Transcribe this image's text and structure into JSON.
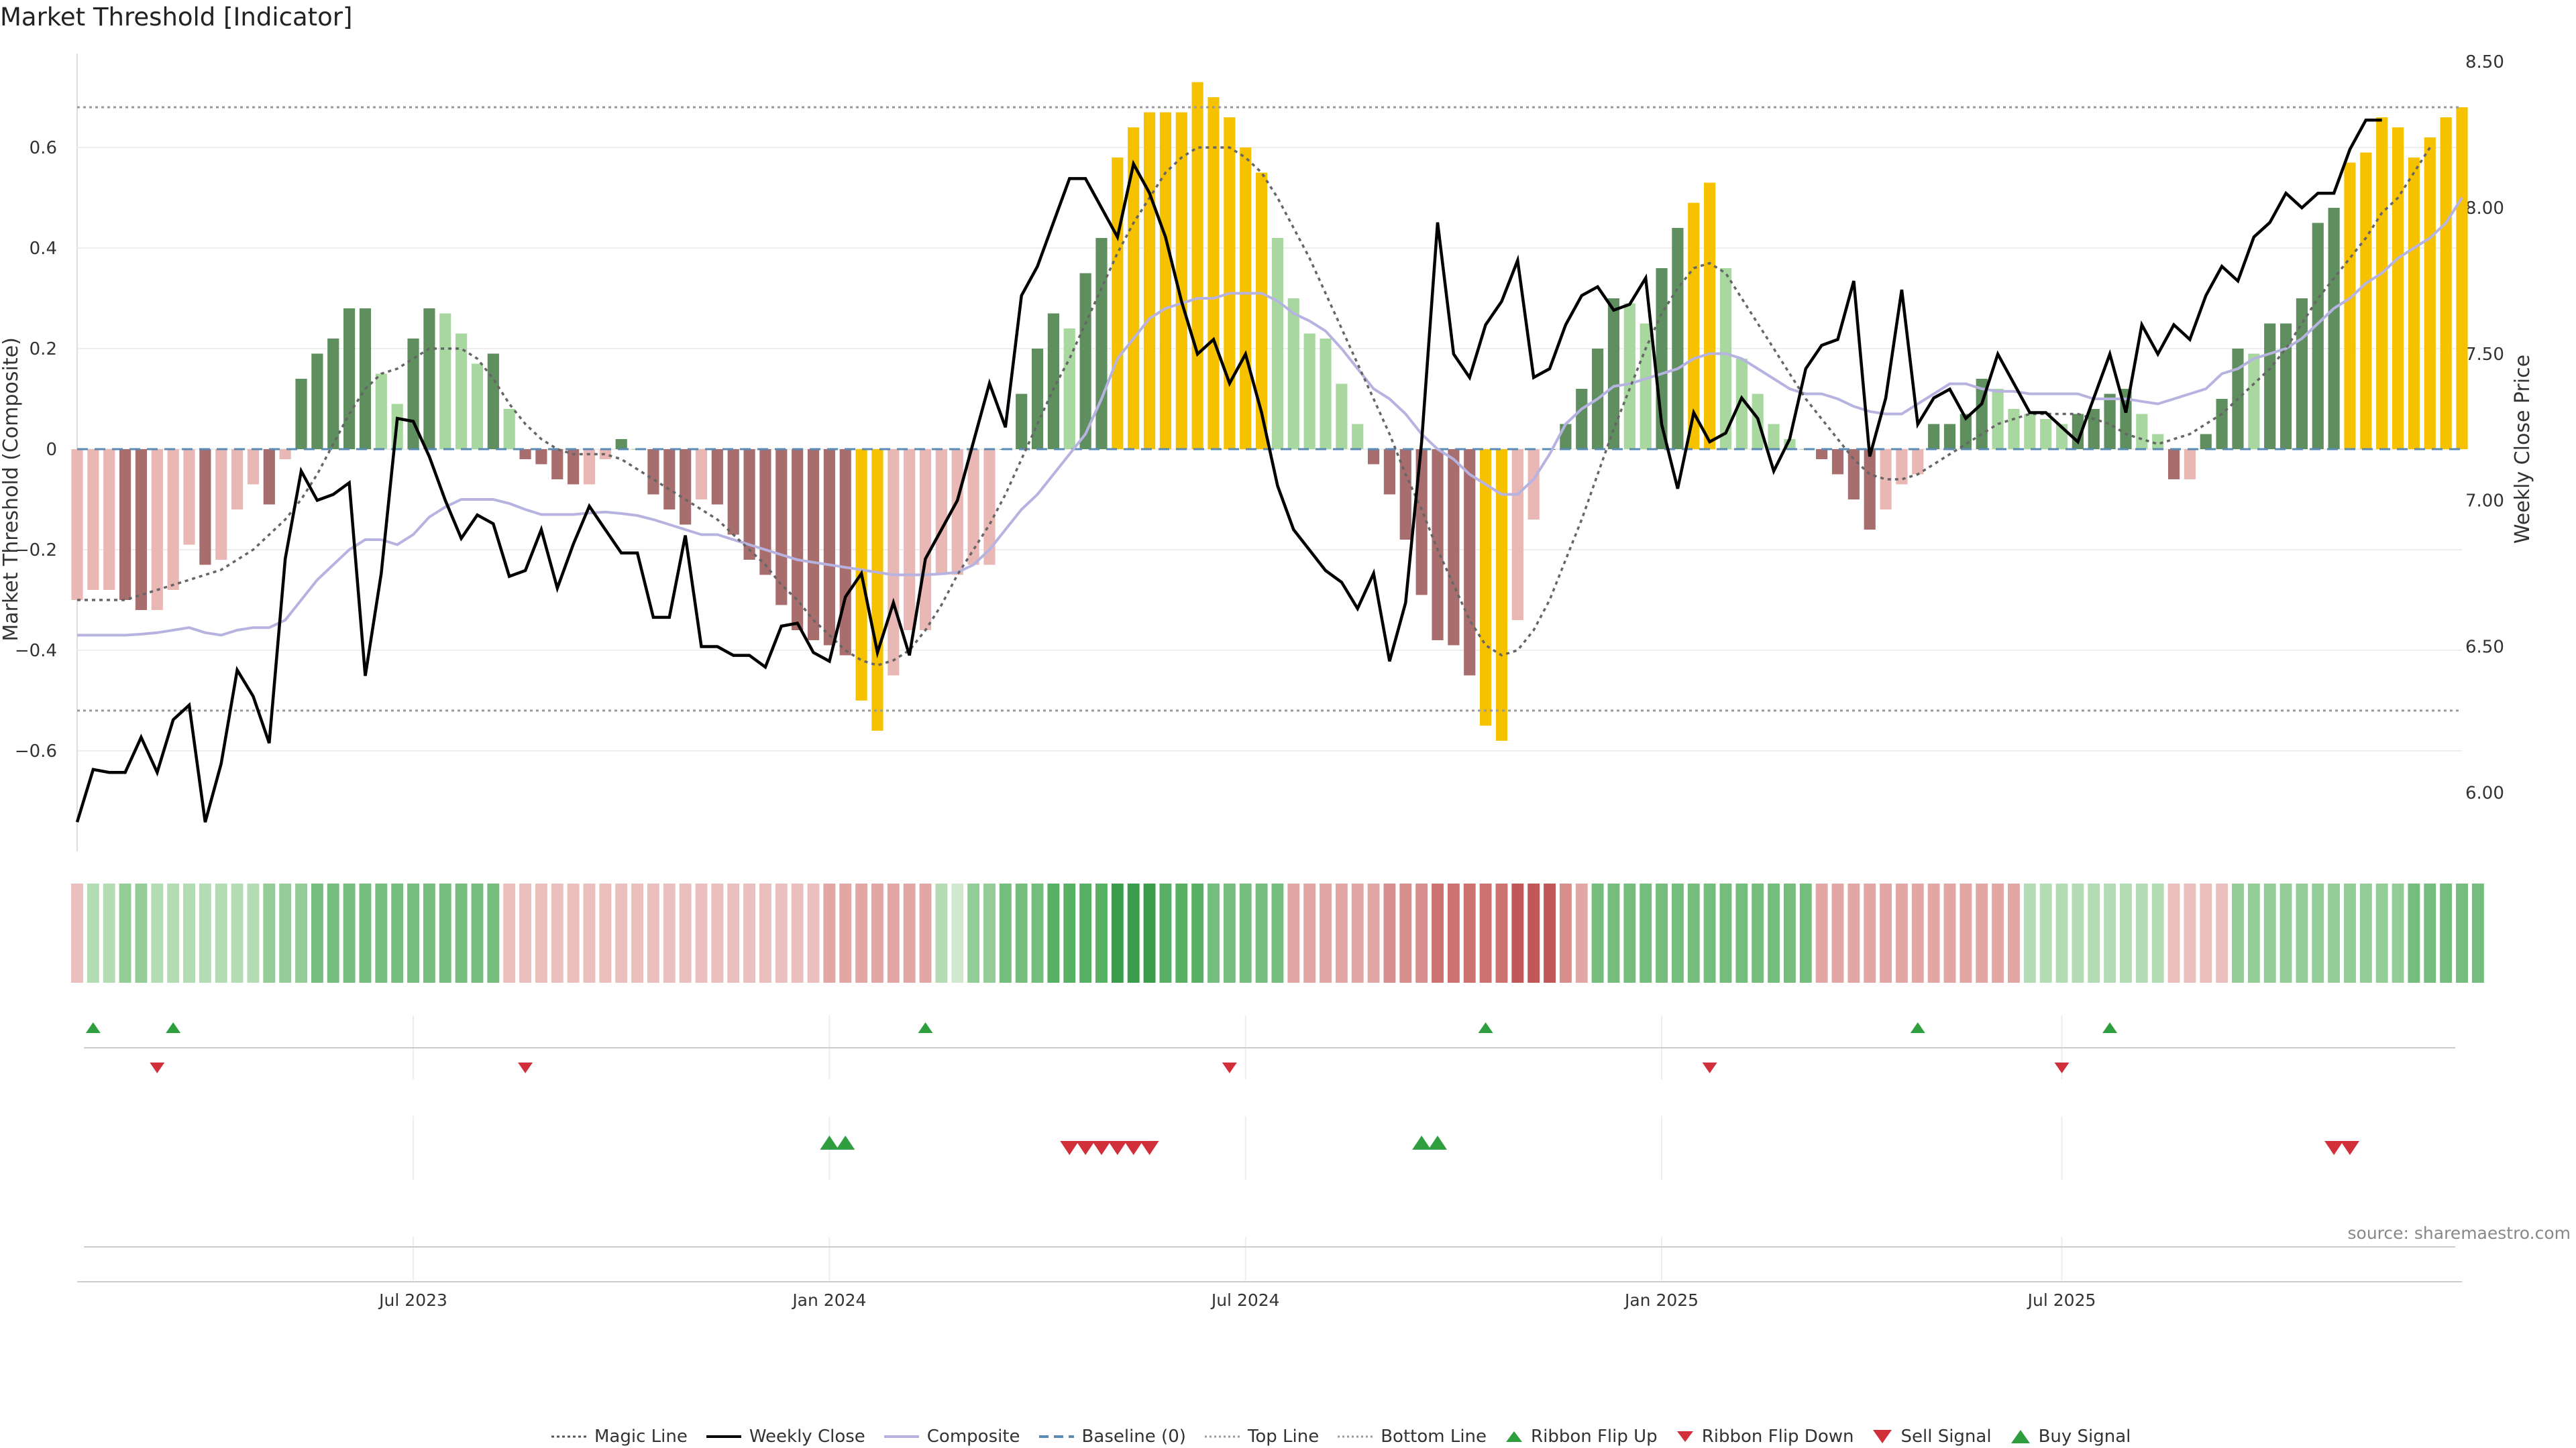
{
  "title": "Market Threshold [Indicator]",
  "source": "source: sharemaestro.com",
  "colors": {
    "weekly_close": "#000000",
    "composite": "#b7b3e0",
    "magic_line": "#666666",
    "baseline": "#5b8bb5",
    "threshold_lines": "#999999",
    "bar_dark_green": "#5f8f5f",
    "bar_light_green": "#a8d8a0",
    "bar_dark_red": "#a86e6e",
    "bar_light_red": "#eab8b4",
    "bar_extreme": "#f6c200",
    "signal_up": "#2e9e3e",
    "signal_down": "#d12f3a"
  },
  "legend": {
    "magic_line": "Magic Line",
    "weekly_close": "Weekly Close",
    "composite": "Composite",
    "baseline": "Baseline (0)",
    "top_line": "Top Line",
    "bottom_line": "Bottom Line",
    "ribbon_flip_up": "Ribbon Flip Up",
    "ribbon_flip_down": "Ribbon Flip Down",
    "sell_signal": "Sell Signal",
    "buy_signal": "Buy Signal"
  },
  "chart_data": {
    "type": "bar",
    "title": "Market Threshold [Indicator]",
    "ylabel": "Market Threshold (Composite)",
    "y2label": "Weekly Close Price",
    "ylim": [
      -0.8,
      0.8
    ],
    "y2lim": [
      5.8,
      8.55
    ],
    "yticks": [
      "0.6",
      "0.4",
      "0.2",
      "0",
      "−0.2",
      "−0.4",
      "−0.6"
    ],
    "y2ticks": [
      "8.50",
      "8.00",
      "7.50",
      "7.00",
      "6.50",
      "6.00"
    ],
    "xticks": [
      "Jul 2023",
      "Jan 2024",
      "Jul 2024",
      "Jan 2025",
      "Jul 2025"
    ],
    "xtick_positions": [
      21,
      47,
      73,
      99,
      124
    ],
    "top_line": 0.68,
    "bottom_line": -0.52,
    "grid": true,
    "legend_position": "bottom",
    "composite_bars": [
      -0.3,
      -0.28,
      -0.28,
      -0.3,
      -0.32,
      -0.32,
      -0.28,
      -0.19,
      -0.23,
      -0.22,
      -0.12,
      -0.07,
      -0.11,
      -0.02,
      0.14,
      0.19,
      0.22,
      0.28,
      0.28,
      0.15,
      0.09,
      0.22,
      0.28,
      0.27,
      0.23,
      0.17,
      0.19,
      0.08,
      -0.02,
      -0.03,
      -0.06,
      -0.07,
      -0.07,
      -0.02,
      0.02,
      0,
      -0.09,
      -0.12,
      -0.15,
      -0.1,
      -0.11,
      -0.17,
      -0.22,
      -0.25,
      -0.31,
      -0.36,
      -0.38,
      -0.39,
      -0.41,
      -0.5,
      -0.56,
      -0.45,
      -0.36,
      -0.36,
      -0.25,
      -0.25,
      -0.23,
      -0.23,
      0,
      0.11,
      0.2,
      0.27,
      0.24,
      0.35,
      0.42,
      0.58,
      0.64,
      0.67,
      0.67,
      0.67,
      0.73,
      0.7,
      0.66,
      0.6,
      0.55,
      0.42,
      0.3,
      0.23,
      0.22,
      0.13,
      0.05,
      -0.03,
      -0.09,
      -0.18,
      -0.29,
      -0.38,
      -0.39,
      -0.45,
      -0.55,
      -0.58,
      -0.34,
      -0.14,
      0,
      0.05,
      0.12,
      0.2,
      0.3,
      0.29,
      0.25,
      0.36,
      0.44,
      0.49,
      0.53,
      0.36,
      0.18,
      0.11,
      0.05,
      0.02,
      0,
      -0.02,
      -0.05,
      -0.1,
      -0.16,
      -0.12,
      -0.07,
      -0.05,
      0.05,
      0.05,
      0.07,
      0.14,
      0.12,
      0.08,
      0.07,
      0.06,
      0.05,
      0.07,
      0.08,
      0.11,
      0.12,
      0.07,
      0.03,
      -0.06,
      -0.06,
      0.03,
      0.1,
      0.2,
      0.19,
      0.25,
      0.25,
      0.3,
      0.45,
      0.48,
      0.57,
      0.59,
      0.66,
      0.64,
      0.58,
      0.62,
      0.66,
      0.68
    ],
    "weekly_close": [
      5.9,
      6.08,
      6.07,
      6.07,
      6.19,
      6.07,
      6.25,
      6.3,
      5.9,
      6.1,
      6.42,
      6.33,
      6.17,
      6.8,
      7.1,
      7.0,
      7.02,
      7.06,
      6.4,
      6.75,
      7.28,
      7.27,
      7.15,
      7.0,
      6.87,
      6.95,
      6.92,
      6.74,
      6.76,
      6.9,
      6.7,
      6.85,
      6.98,
      6.9,
      6.82,
      6.82,
      6.6,
      6.6,
      6.88,
      6.5,
      6.5,
      6.47,
      6.47,
      6.43,
      6.57,
      6.58,
      6.48,
      6.45,
      6.67,
      6.75,
      6.48,
      6.65,
      6.47,
      6.8,
      6.9,
      7.0,
      7.2,
      7.4,
      7.25,
      7.7,
      7.8,
      7.95,
      8.1,
      8.1,
      8.0,
      7.9,
      8.15,
      8.05,
      7.9,
      7.68,
      7.5,
      7.55,
      7.4,
      7.5,
      7.3,
      7.05,
      6.9,
      6.83,
      6.76,
      6.72,
      6.63,
      6.75,
      6.45,
      6.65,
      7.2,
      7.95,
      7.5,
      7.42,
      7.6,
      7.68,
      7.82,
      7.42,
      7.45,
      7.6,
      7.7,
      7.73,
      7.65,
      7.67,
      7.76,
      7.26,
      7.04,
      7.3,
      7.2,
      7.23,
      7.35,
      7.28,
      7.1,
      7.21,
      7.45,
      7.53,
      7.55,
      7.75,
      7.15,
      7.35,
      7.72,
      7.26,
      7.35,
      7.38,
      7.28,
      7.33,
      7.5,
      7.4,
      7.3,
      7.3,
      7.25,
      7.2,
      7.35,
      7.5,
      7.3,
      7.6,
      7.5,
      7.6,
      7.55,
      7.7,
      7.8,
      7.75,
      7.9,
      7.95,
      8.05,
      8.0,
      8.05,
      8.05,
      8.2,
      8.3,
      8.3
    ],
    "composite_line": [
      -0.37,
      -0.37,
      -0.37,
      -0.37,
      -0.368,
      -0.365,
      -0.36,
      -0.355,
      -0.365,
      -0.37,
      -0.36,
      -0.355,
      -0.355,
      -0.34,
      -0.3,
      -0.26,
      -0.23,
      -0.2,
      -0.18,
      -0.18,
      -0.19,
      -0.17,
      -0.135,
      -0.115,
      -0.1,
      -0.1,
      -0.1,
      -0.108,
      -0.12,
      -0.13,
      -0.13,
      -0.13,
      -0.127,
      -0.125,
      -0.128,
      -0.132,
      -0.14,
      -0.15,
      -0.16,
      -0.17,
      -0.17,
      -0.18,
      -0.19,
      -0.2,
      -0.21,
      -0.22,
      -0.225,
      -0.23,
      -0.235,
      -0.24,
      -0.245,
      -0.25,
      -0.25,
      -0.25,
      -0.248,
      -0.245,
      -0.23,
      -0.2,
      -0.16,
      -0.12,
      -0.09,
      -0.05,
      -0.01,
      0.03,
      0.1,
      0.18,
      0.22,
      0.26,
      0.28,
      0.29,
      0.3,
      0.3,
      0.31,
      0.31,
      0.31,
      0.295,
      0.27,
      0.255,
      0.235,
      0.2,
      0.16,
      0.12,
      0.1,
      0.07,
      0.03,
      0,
      -0.02,
      -0.05,
      -0.07,
      -0.09,
      -0.09,
      -0.06,
      -0.01,
      0.05,
      0.08,
      0.1,
      0.125,
      0.13,
      0.14,
      0.15,
      0.16,
      0.18,
      0.19,
      0.19,
      0.18,
      0.16,
      0.14,
      0.12,
      0.11,
      0.11,
      0.1,
      0.085,
      0.075,
      0.07,
      0.07,
      0.09,
      0.11,
      0.13,
      0.13,
      0.12,
      0.115,
      0.115,
      0.11,
      0.11,
      0.11,
      0.11,
      0.1,
      0.1,
      0.1,
      0.095,
      0.09,
      0.1,
      0.11,
      0.12,
      0.15,
      0.16,
      0.18,
      0.19,
      0.2,
      0.22,
      0.25,
      0.28,
      0.3,
      0.33,
      0.35,
      0.38,
      0.4,
      0.42,
      0.45,
      0.5
    ],
    "magic_line": [
      -0.3,
      -0.3,
      -0.3,
      -0.3,
      -0.29,
      -0.28,
      -0.27,
      -0.26,
      -0.25,
      -0.24,
      -0.22,
      -0.2,
      -0.17,
      -0.14,
      -0.1,
      -0.05,
      0.01,
      0.07,
      0.12,
      0.15,
      0.16,
      0.18,
      0.2,
      0.2,
      0.2,
      0.18,
      0.14,
      0.09,
      0.05,
      0.02,
      0,
      -0.01,
      -0.01,
      -0.01,
      -0.02,
      -0.04,
      -0.06,
      -0.08,
      -0.1,
      -0.12,
      -0.14,
      -0.17,
      -0.2,
      -0.23,
      -0.27,
      -0.3,
      -0.34,
      -0.37,
      -0.4,
      -0.42,
      -0.43,
      -0.42,
      -0.4,
      -0.36,
      -0.31,
      -0.25,
      -0.2,
      -0.15,
      -0.09,
      -0.02,
      0.05,
      0.12,
      0.18,
      0.25,
      0.32,
      0.39,
      0.45,
      0.5,
      0.55,
      0.58,
      0.6,
      0.6,
      0.6,
      0.58,
      0.55,
      0.5,
      0.44,
      0.38,
      0.31,
      0.24,
      0.17,
      0.1,
      0.03,
      -0.05,
      -0.12,
      -0.2,
      -0.27,
      -0.34,
      -0.39,
      -0.41,
      -0.4,
      -0.36,
      -0.3,
      -0.22,
      -0.14,
      -0.05,
      0.04,
      0.12,
      0.2,
      0.27,
      0.32,
      0.36,
      0.37,
      0.35,
      0.3,
      0.25,
      0.2,
      0.15,
      0.1,
      0.06,
      0.02,
      -0.02,
      -0.05,
      -0.06,
      -0.06,
      -0.05,
      -0.03,
      -0.01,
      0.01,
      0.03,
      0.05,
      0.06,
      0.07,
      0.07,
      0.07,
      0.07,
      0.06,
      0.05,
      0.03,
      0.02,
      0.01,
      0.02,
      0.03,
      0.05,
      0.07,
      0.1,
      0.13,
      0.16,
      0.2,
      0.25,
      0.3,
      0.34,
      0.38,
      0.42,
      0.47,
      0.5,
      0.55,
      0.6
    ],
    "ribbon_levels": [
      -1,
      1,
      1,
      2,
      2,
      1,
      1,
      1,
      1,
      1,
      1,
      1,
      2,
      2,
      2,
      3,
      3,
      3,
      3,
      3,
      3,
      3,
      3,
      3,
      3,
      3,
      3,
      -1,
      -1,
      -1,
      -1,
      -1,
      -1,
      -1,
      -1,
      -1,
      -1,
      -1,
      -1,
      -1,
      -1,
      -1,
      -1,
      -1,
      -1,
      -1,
      -1,
      -2,
      -2,
      -2,
      -2,
      -2,
      -2,
      -2,
      1,
      0,
      2,
      2,
      3,
      3,
      3,
      4,
      4,
      4,
      4,
      5,
      5,
      5,
      4,
      4,
      4,
      3,
      3,
      3,
      3,
      3,
      -2,
      -2,
      -2,
      -2,
      -2,
      -2,
      -3,
      -3,
      -3,
      -4,
      -4,
      -4,
      -4,
      -4,
      -5,
      -5,
      -5,
      -3,
      -2,
      3,
      3,
      3,
      3,
      3,
      3,
      3,
      3,
      3,
      3,
      3,
      3,
      3,
      3,
      -2,
      -2,
      -2,
      -2,
      -2,
      -2,
      -2,
      -2,
      -2,
      -2,
      -2,
      -2,
      -2,
      1,
      1,
      1,
      1,
      1,
      1,
      1,
      1,
      1,
      -1,
      -1,
      -1,
      -1,
      2,
      2,
      2,
      2,
      2,
      2,
      2,
      2,
      2,
      2,
      2,
      3,
      3,
      3,
      3,
      3
    ],
    "ribbon_flip_up": [
      1,
      6,
      53,
      88,
      115,
      127
    ],
    "ribbon_flip_down": [
      5,
      28,
      72,
      102,
      124
    ],
    "buy_signal": [
      47,
      48,
      84,
      85
    ],
    "sell_signal": [
      62,
      63,
      64,
      65,
      66,
      67,
      141,
      142
    ]
  }
}
